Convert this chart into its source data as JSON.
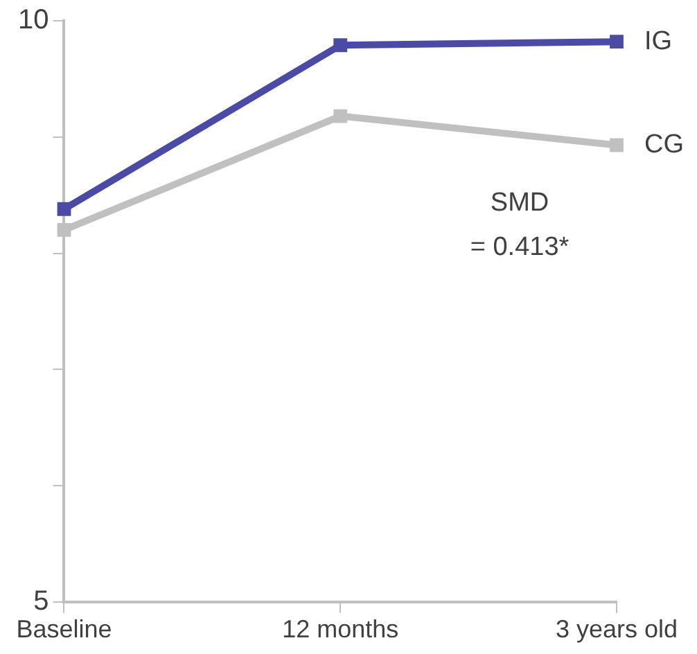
{
  "chart_data": {
    "type": "line",
    "categories": [
      "Baseline",
      "12 months",
      "3 years old"
    ],
    "series": [
      {
        "name": "IG",
        "color": "#4b4ba6",
        "values": [
          8.38,
          9.79,
          9.82
        ]
      },
      {
        "name": "CG",
        "color": "#c0c0c0",
        "values": [
          8.2,
          9.18,
          8.93
        ]
      }
    ],
    "ylim": [
      5,
      10
    ],
    "yticks": [
      5,
      {
        "value": 6,
        "label": null
      },
      {
        "value": 7,
        "label": null
      },
      {
        "value": 8,
        "label": null
      },
      {
        "value": 9,
        "label": null
      },
      10
    ],
    "annotations": [
      "SMD = 0.413*"
    ],
    "marker": "square",
    "line_style": "solid",
    "grid": false,
    "legend": false
  }
}
